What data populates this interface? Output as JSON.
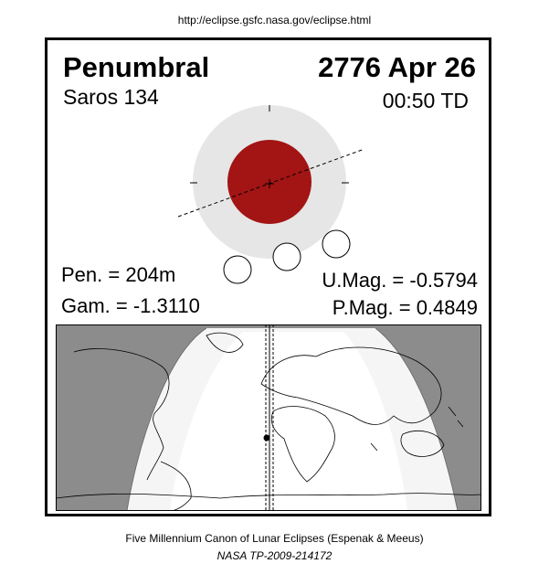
{
  "url": "http://eclipse.gsfc.nasa.gov/eclipse.html",
  "header": {
    "eclipse_type": "Penumbral",
    "date": "2776 Apr 26",
    "saros": "Saros 134",
    "time": "00:50 TD"
  },
  "stats": {
    "pen_duration": "Pen. = 204m",
    "gamma": "Gam. = -1.3110",
    "umbral_magnitude": "U.Mag. = -0.5794",
    "penumbral_magnitude": "P.Mag. = 0.4849"
  },
  "colors": {
    "penumbra": "#e6e6e6",
    "umbra": "#a31414",
    "night_side": "#8c8c8c",
    "visible_region": "#ffffff",
    "partial_visibility": "#f5f5f5"
  },
  "footer": {
    "canon": "Five Millennium Canon of Lunar Eclipses (Espenak & Meeus)",
    "publication": "NASA TP-2009-214172"
  }
}
